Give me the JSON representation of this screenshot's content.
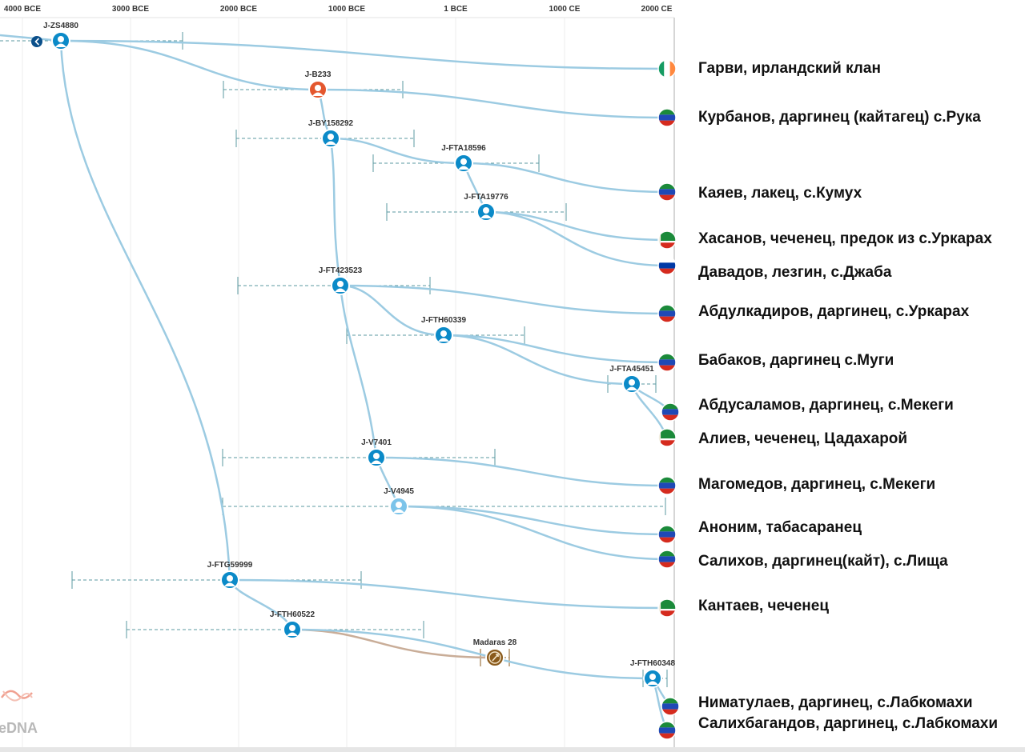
{
  "timeline": {
    "ticks": [
      "4000 BCE",
      "3000 BCE",
      "2000 BCE",
      "1000 BCE",
      "1 BCE",
      "1000 CE",
      "2000 CE"
    ]
  },
  "colors": {
    "branch": "#9ccbe2",
    "node": "#0b8ac8",
    "node_highlight": "#e4572e",
    "node_light": "#7cc4ea",
    "ancient": "#8a5a1c",
    "ancient_branch": "#c9ad98",
    "ci_line": "#5b9aa0",
    "back_button": "#0a4f8a"
  },
  "nodes": [
    {
      "id": "J-ZS4880"
    },
    {
      "id": "J-B233"
    },
    {
      "id": "J-BY158292"
    },
    {
      "id": "J-FTA18596"
    },
    {
      "id": "J-FTA19776"
    },
    {
      "id": "J-FT423523"
    },
    {
      "id": "J-FTH60339"
    },
    {
      "id": "J-FTA45451"
    },
    {
      "id": "J-V7401"
    },
    {
      "id": "J-V4945"
    },
    {
      "id": "J-FTG59999"
    },
    {
      "id": "J-FTH60522"
    },
    {
      "id": "Madaras 28"
    },
    {
      "id": "J-FTH60348"
    }
  ],
  "samples": [
    {
      "name": "Гарви, ирландский клан",
      "flag": "ireland-flag"
    },
    {
      "name": "Курбанов, даргинец (кайтагец) с.Рука",
      "flag": "dagestan-flag"
    },
    {
      "name": "Каяев, лакец, с.Кумух",
      "flag": "dagestan-flag"
    },
    {
      "name": "Хасанов, чеченец, предок из с.Уркарах",
      "flag": "chechnya-flag"
    },
    {
      "name": "Давадов, лезгин, с.Джаба",
      "flag": "russia-flag"
    },
    {
      "name": "Абдулкадиров, даргинец, с.Уркарах",
      "flag": "dagestan-flag"
    },
    {
      "name": "Бабаков, даргинец с.Муги",
      "flag": "dagestan-flag"
    },
    {
      "name": "Абдусаламов, даргинец, с.Мекеги",
      "flag": "dagestan-flag"
    },
    {
      "name": "Алиев, чеченец, Цадахарой",
      "flag": "chechnya-flag"
    },
    {
      "name": "Магомедов, даргинец, с.Мекеги",
      "flag": "dagestan-flag"
    },
    {
      "name": "Аноним, табасаранец",
      "flag": "dagestan-flag"
    },
    {
      "name": "Салихов, даргинец(кайт), с.Лища",
      "flag": "dagestan-flag"
    },
    {
      "name": "Кантаев, чеченец",
      "flag": "chechnya-flag"
    },
    {
      "name": "Ниматулаев, даргинец, с.Лабкомахи",
      "flag": "dagestan-flag"
    },
    {
      "name": "Салихбагандов, даргинец, с.Лабкомахи",
      "flag": "dagestan-flag"
    }
  ],
  "logo": {
    "text": "eDNA"
  }
}
